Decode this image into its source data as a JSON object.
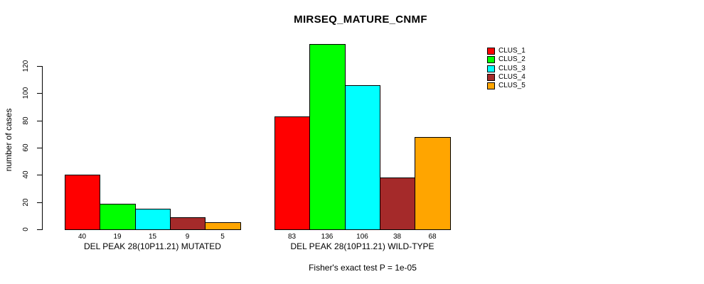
{
  "title": "MIRSEQ_MATURE_CNMF",
  "background_color": "#FFFFFF",
  "chart_data": {
    "type": "bar",
    "title": "MIRSEQ_MATURE_CNMF",
    "xlabel": "",
    "ylabel": "number of cases",
    "yticks": [
      0,
      20,
      40,
      60,
      80,
      100,
      120
    ],
    "ylim": [
      0,
      136
    ],
    "grid": false,
    "legend_position": "top-right",
    "categories": [
      "DEL PEAK 28(10P11.21) MUTATED",
      "DEL PEAK 28(10P11.21) WILD-TYPE"
    ],
    "series": [
      {
        "name": "CLUS_1",
        "color": "#FF0000",
        "values": [
          40,
          83
        ]
      },
      {
        "name": "CLUS_2",
        "color": "#00FF00",
        "values": [
          19,
          136
        ]
      },
      {
        "name": "CLUS_3",
        "color": "#00FFFF",
        "values": [
          15,
          106
        ]
      },
      {
        "name": "CLUS_4",
        "color": "#A52A2A",
        "values": [
          9,
          38
        ]
      },
      {
        "name": "CLUS_5",
        "color": "#FFA500",
        "values": [
          5,
          68
        ]
      }
    ],
    "bar_value_labels": [
      [
        40,
        19,
        15,
        9,
        5
      ],
      [
        83,
        136,
        106,
        38,
        68
      ]
    ],
    "annotation": "Fisher's exact test P = 1e-05"
  }
}
